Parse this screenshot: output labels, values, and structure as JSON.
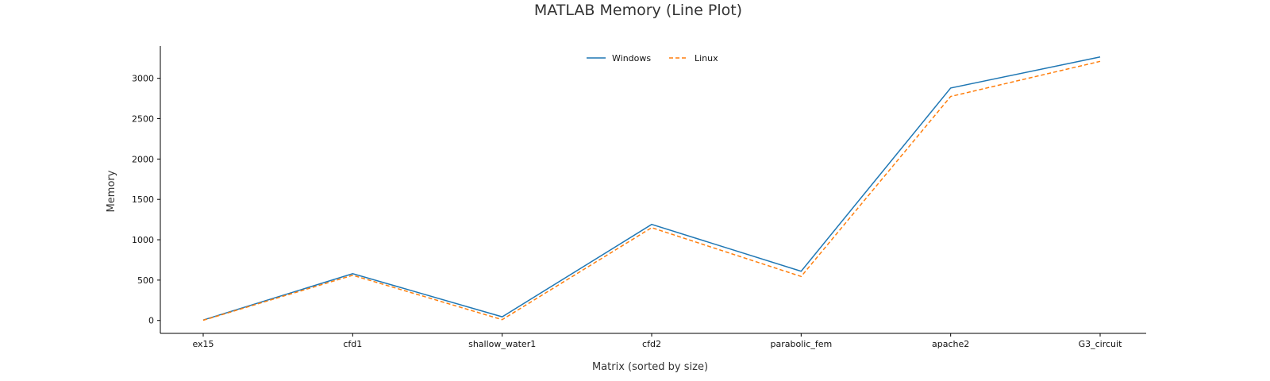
{
  "chart_data": {
    "type": "line",
    "title": "MATLAB Memory (Line Plot)",
    "xlabel": "Matrix (sorted by size)",
    "ylabel": "Memory",
    "categories": [
      "ex15",
      "cfd1",
      "shallow_water1",
      "cfd2",
      "parabolic_fem",
      "apache2",
      "G3_circuit"
    ],
    "series": [
      {
        "name": "Windows",
        "values": [
          5,
          580,
          45,
          1190,
          610,
          2880,
          3265
        ],
        "color": "#1f77b4",
        "line_style": "solid"
      },
      {
        "name": "Linux",
        "values": [
          2,
          560,
          10,
          1150,
          545,
          2775,
          3210
        ],
        "color": "#ff7f0e",
        "line_style": "dashed"
      }
    ],
    "ylim": [
      -160,
      3400
    ],
    "yticks": [
      0,
      500,
      1000,
      1500,
      2000,
      2500,
      3000
    ],
    "grid": false,
    "legend_position": "top-center"
  }
}
